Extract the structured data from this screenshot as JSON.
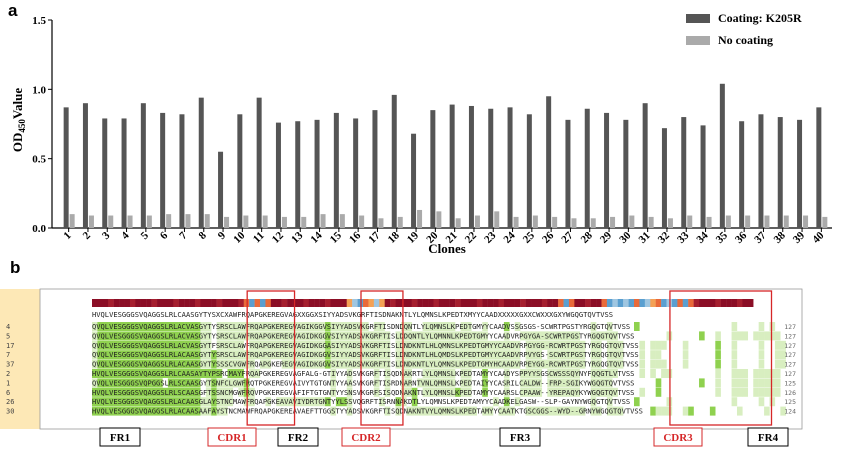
{
  "chart_data": {
    "type": "bar",
    "panel_label": "a",
    "ylabel_main": "OD",
    "ylabel_sub": "450",
    "ylabel_suffix": "Value",
    "xlabel": "Clones",
    "ylim": [
      0,
      1.5
    ],
    "yticks": [
      "0.0",
      "0.5",
      "1.0",
      "1.5"
    ],
    "categories": [
      "1",
      "2",
      "3",
      "4",
      "5",
      "6",
      "7",
      "8",
      "9",
      "10",
      "11",
      "12",
      "13",
      "14",
      "15",
      "16",
      "17",
      "18",
      "19",
      "20",
      "21",
      "22",
      "23",
      "24",
      "25",
      "26",
      "27",
      "28",
      "29",
      "30",
      "31",
      "32",
      "33",
      "34",
      "35",
      "36",
      "37",
      "38",
      "39",
      "40"
    ],
    "series": [
      {
        "name": "Coating: K205R",
        "color": "#555555",
        "values": [
          0.87,
          0.9,
          0.79,
          0.79,
          0.9,
          0.83,
          0.82,
          0.94,
          0.55,
          0.82,
          0.94,
          0.76,
          0.77,
          0.78,
          0.83,
          0.79,
          0.85,
          0.96,
          0.68,
          0.85,
          0.89,
          0.88,
          0.86,
          0.87,
          0.82,
          0.95,
          0.78,
          0.86,
          0.83,
          0.78,
          0.9,
          0.72,
          0.8,
          0.74,
          1.04,
          0.77,
          0.82,
          0.8,
          0.78,
          0.87
        ]
      },
      {
        "name": "No coating",
        "color": "#aaaaaa",
        "values": [
          0.1,
          0.09,
          0.09,
          0.09,
          0.09,
          0.1,
          0.1,
          0.1,
          0.08,
          0.09,
          0.09,
          0.08,
          0.08,
          0.1,
          0.1,
          0.09,
          0.07,
          0.08,
          0.13,
          0.12,
          0.07,
          0.09,
          0.12,
          0.08,
          0.09,
          0.08,
          0.07,
          0.07,
          0.08,
          0.09,
          0.08,
          0.07,
          0.09,
          0.08,
          0.09,
          0.09,
          0.09,
          0.09,
          0.09,
          0.08
        ]
      }
    ],
    "legend_position": "top-right"
  },
  "alignment": {
    "panel_label": "b",
    "consensus": "HVQLVESGGGSVQAGGSLRLCAASGYTYSXCXAWFRQAPGKEREGVAGXXGGXSIYYADSVKGRFTISDNAKNTLYLQMNSLKPEDTXMYYCAADXXXXXGXXCWXXXGXYWGQGTQVTVSS",
    "rows": [
      {
        "label": "4",
        "seq": "QVQLVESGGGSVQAGGSLRLACVASGYTYSRSCLAWFRQAPGKEREGVAGIKGGVSIYYADSVKGRFTISDNDQNTLYLQMNSLKPEDTGMYYCAADVSSGSGS-SCWRTPGSTYRGQGTQVTVSS",
        "count": "127"
      },
      {
        "label": "5",
        "seq": "QVQLVESGGGSVQAGGSLRLACVASGYTYSRSCLAWFRQAPGKEREGVAGIDKGGVSIYYADSVKGRFTISLDDQNTLYLQMNNLKPEDTGMYYCAADVRPGYGA-SCWRTPGSTYRGQGTQVTVSS",
        "count": "127"
      },
      {
        "label": "17",
        "seq": "QVQLVESGGGSVQAGGSLRLACVASGYTFSRSCLAWFRQAPGKEREGVAGIDKGGASIYYADSVKGRFTISLDNDKNTLHLQMNSLKPEDTGMYYCAADVRPGYGG-RCWRTPGSTYRGQGTQVTVSS",
        "count": "127"
      },
      {
        "label": "7",
        "seq": "QVQLVESGGGSVQAGGSLRLACAASGYTYSRSCLAWFRQAPGKEREGVAGIDKGGVSIYYADSVKGRFTISLDNDKNTLHLQMDSLKPEDTGMYYCAADVRPVYGS-SCWRTPGSTYRGQGTQVTVSS",
        "count": "127"
      },
      {
        "label": "37",
        "seq": "QVQLVESGGGSVQAGGSLRLACAASGYTYSSSCVGWFRQAPGKEREGVAGIDKGGVSIYYADSVKGRFTISLDNDKNTLYLQMNSLKPEDTGMYHCAADVRPEYGG-RCWRTPGSTYRGQGTQVTVSS",
        "count": "127"
      },
      {
        "label": "2",
        "seq": "HVQLVESGGGSVQAGGSLRLCAASAYTYPSRCMAYFRQAPGKEREGVAGFALG-GTIYYADSVKGRFTISQDNAKRTLYLQMNSLKPEDTAMYYCAADYSPPYYSGSCWSSSQYNYFQQGTLVTVSS",
        "count": "127"
      },
      {
        "label": "1",
        "seq": "QVQLVESGGGSVQPGGSLRLSCAASGYTSNFCLGWFRQTPGKEREGVAIVYTGTGNTYYAASVKGRFTISRDNARNTVNLQMNSLKPEDTAIYYCASRILCALDW--FRP-SGIKYWGQGTQVTVSS",
        "count": "125"
      },
      {
        "label": "6",
        "seq": "HVQLVESGGGSVQAGGSLRLSCAASGFTSSNCMGWFRQVPGKEREGVAFIFTGTGNTYYSNSVKGRFSISQDNAKNTLYLQMNSLKPEDTAMYYCAARSLCPAAW--YREPAQYKYWGQGTQVTVSS",
        "count": "126"
      },
      {
        "label": "26",
        "seq": "HVQLVESGGGSVQAGGSLRLACAASGLAYSTNCMAWFRQAPGKEAVAVIYDRTGNTYYLSSVQGRFTISRNNAKDTLYLQMNSLKPEDTAMYYCAADKELGASW--SLP-GAYNYWGQGTQVTVSS",
        "count": "125"
      },
      {
        "label": "30",
        "seq": "HVQLVESGGGSVQAGGSLRLACAASAAFAYSTNCMAWFRQAPGKEREAVAEFTTGGSTYYADSVKGRFTISQDNAKNTVYLQMNSLKPEDTAMYYCAATKTGSCGGS--WYD--GRNYWGQGTQVTVSS",
        "count": "124"
      }
    ],
    "regions": [
      {
        "name": "FR1",
        "color": "#000000"
      },
      {
        "name": "CDR1",
        "color": "#d62728"
      },
      {
        "name": "FR2",
        "color": "#000000"
      },
      {
        "name": "CDR2",
        "color": "#d62728"
      },
      {
        "name": "FR3",
        "color": "#000000"
      },
      {
        "name": "CDR3",
        "color": "#d62728"
      },
      {
        "name": "FR4",
        "color": "#000000"
      }
    ]
  }
}
